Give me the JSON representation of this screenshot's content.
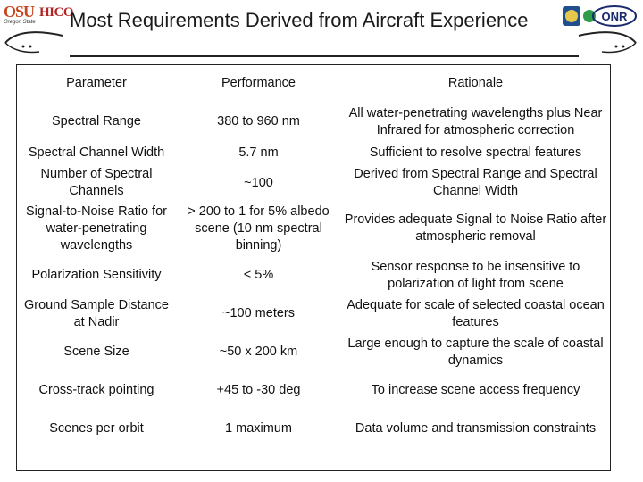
{
  "header": {
    "osu_logo_text": "OSU",
    "osu_logo_subtext": "Oregon State",
    "hico_logo_text": "HICO",
    "title": "Most Requirements Derived from Aircraft Experience",
    "right_logo_text": "ONR"
  },
  "table": {
    "headers": [
      "Parameter",
      "Performance",
      "Rationale"
    ],
    "rows": [
      {
        "parameter": "Spectral Range",
        "performance": "380 to 960 nm",
        "rationale": "All water-penetrating wavelengths plus Near Infrared for atmospheric correction"
      },
      {
        "parameter": "Spectral Channel Width",
        "performance": "5.7 nm",
        "rationale": "Sufficient to resolve spectral features"
      },
      {
        "parameter": "Number of Spectral Channels",
        "performance": "~100",
        "rationale": "Derived from Spectral Range and Spectral Channel Width"
      },
      {
        "parameter": "Signal-to-Noise Ratio for water-penetrating wavelengths",
        "performance": "> 200 to 1 for 5% albedo scene (10 nm spectral binning)",
        "rationale": "Provides adequate Signal to Noise Ratio after atmospheric removal"
      },
      {
        "parameter": "Polarization Sensitivity",
        "performance": "< 5%",
        "rationale": "Sensor response to be insensitive to polarization of light from scene"
      },
      {
        "parameter": "Ground Sample Distance at Nadir",
        "performance": "~100 meters",
        "rationale": "Adequate for scale of selected coastal ocean features"
      },
      {
        "parameter": "Scene Size",
        "performance": "~50 x 200 km",
        "rationale": "Large enough to capture the scale of coastal dynamics"
      },
      {
        "parameter": "Cross-track pointing",
        "performance": "+45 to -30 deg",
        "rationale": "To increase scene access frequency"
      },
      {
        "parameter": "Scenes per orbit",
        "performance": "1 maximum",
        "rationale": "Data volume and transmission constraints"
      }
    ]
  }
}
